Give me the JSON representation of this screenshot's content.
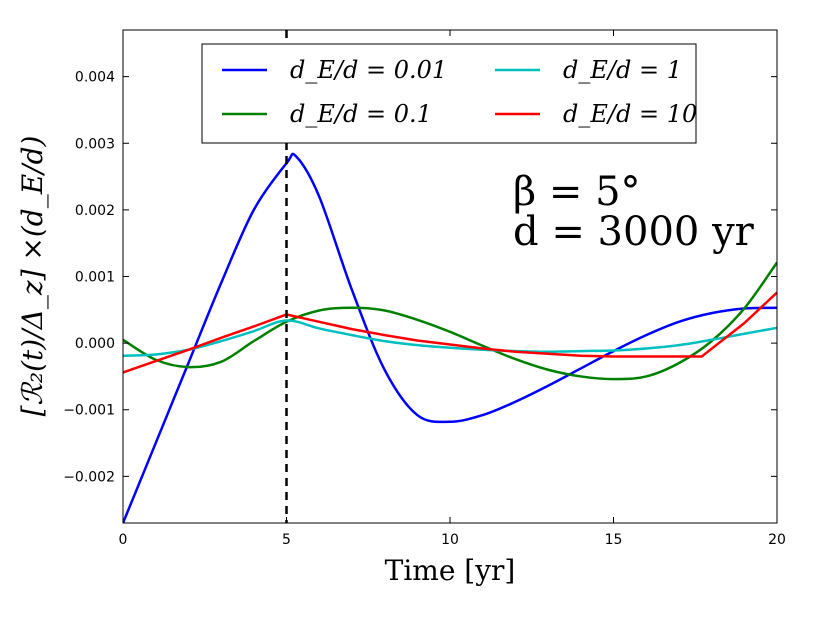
{
  "chart_data": {
    "type": "line",
    "title": "",
    "xlabel": "Time [yr]",
    "ylabel": "[ℛ₂(t)/Δ_z] ×(d_E/d)",
    "xlim": [
      0,
      20
    ],
    "ylim": [
      -0.0027,
      0.0047
    ],
    "xticks": [
      0,
      5,
      10,
      15,
      20
    ],
    "xtick_labels": [
      "0",
      "5",
      "10",
      "15",
      "20"
    ],
    "yticks": [
      -0.002,
      -0.001,
      0.0,
      0.001,
      0.002,
      0.003,
      0.004
    ],
    "ytick_labels": [
      "−0.002",
      "−0.001",
      "0.000",
      "0.001",
      "0.002",
      "0.003",
      "0.004"
    ],
    "grid": false,
    "legend_position": "top-center",
    "vline": {
      "x": 5,
      "style": "dashed",
      "color": "#000000"
    },
    "annotations": [
      {
        "text": "β = 5°",
        "x": 12,
        "y": 0.0023
      },
      {
        "text": "d = 3000 yr",
        "x": 12,
        "y": 0.0015
      }
    ],
    "series": [
      {
        "name": "d_E/d = 0.01",
        "color": "#0000ff",
        "x": [
          0,
          1,
          2,
          3,
          4,
          5,
          5.3,
          6,
          7,
          8,
          9,
          10,
          11,
          12,
          13,
          14,
          15,
          16,
          17,
          18,
          19,
          20
        ],
        "y": [
          -0.0027,
          -0.0015,
          -0.0003,
          0.0009,
          0.002,
          0.0027,
          0.0028,
          0.0022,
          0.0008,
          -0.0004,
          -0.00108,
          -0.00118,
          -0.00108,
          -0.00088,
          -0.00064,
          -0.00038,
          -0.00012,
          0.00012,
          0.00032,
          0.00045,
          0.00052,
          0.00053
        ]
      },
      {
        "name": "d_E/d = 0.1",
        "color": "#008000",
        "x": [
          0,
          1,
          2,
          3,
          4,
          5,
          6,
          7,
          8,
          9,
          10,
          11,
          12,
          13,
          14,
          15,
          16,
          17,
          18,
          19,
          20
        ],
        "y": [
          5e-05,
          -0.00025,
          -0.00036,
          -0.00028,
          3e-05,
          0.00032,
          0.00049,
          0.00053,
          0.00049,
          0.00035,
          0.00017,
          -4e-05,
          -0.00024,
          -0.0004,
          -0.0005,
          -0.00054,
          -0.0005,
          -0.0003,
          3e-05,
          0.00052,
          0.00121
        ]
      },
      {
        "name": "d_E/d = 1",
        "color": "#00bfbf",
        "x": [
          0,
          1,
          2,
          3,
          4,
          5,
          6,
          7,
          8,
          9,
          10,
          11,
          12,
          13,
          14,
          15,
          16,
          17,
          18,
          19,
          20
        ],
        "y": [
          -0.00019,
          -0.00017,
          -0.0001,
          3e-05,
          0.00018,
          0.00034,
          0.00022,
          0.00012,
          3e-05,
          -3e-05,
          -7e-05,
          -0.0001,
          -0.00012,
          -0.00013,
          -0.00012,
          -0.00011,
          -8e-05,
          -3e-05,
          5e-05,
          0.00014,
          0.00023
        ]
      },
      {
        "name": "d_E/d = 10",
        "color": "#ff0000",
        "x": [
          0,
          1,
          2,
          3,
          4,
          5,
          6,
          7,
          8,
          9,
          10,
          11,
          12,
          13,
          14,
          15,
          16,
          17,
          17.7,
          19,
          20
        ],
        "y": [
          -0.00044,
          -0.00027,
          -0.0001,
          8e-05,
          0.00025,
          0.00043,
          0.00032,
          0.00021,
          0.00012,
          4e-05,
          -2e-05,
          -8e-05,
          -0.00013,
          -0.00016,
          -0.00019,
          -0.0002,
          -0.0002,
          -0.0002,
          -0.0002,
          0.0003,
          0.00076
        ]
      }
    ]
  }
}
